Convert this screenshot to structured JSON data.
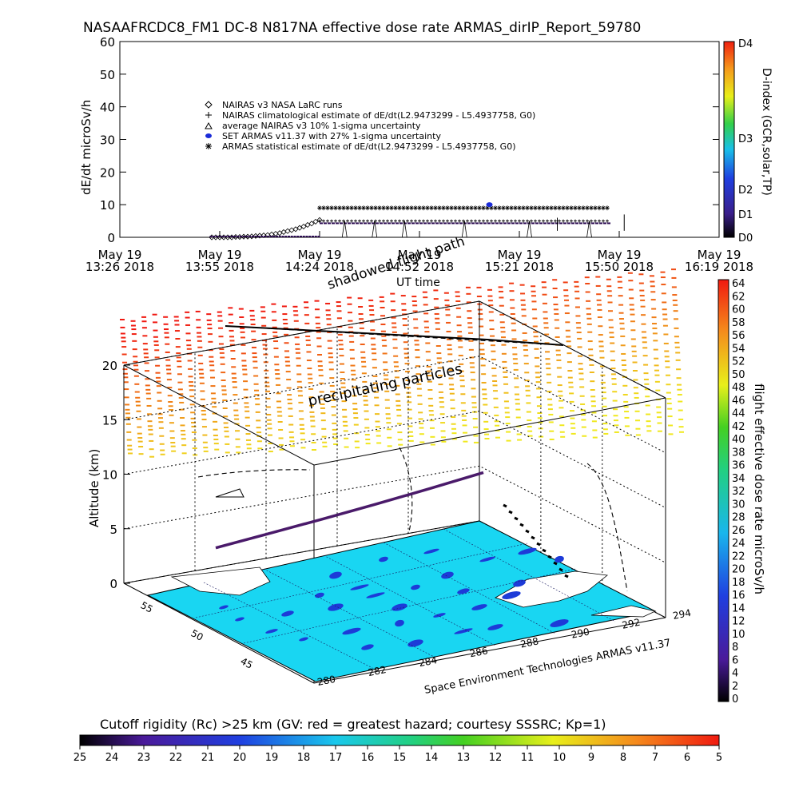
{
  "title": "NASAAFRCDC8_FM1 DC-8   N817NA effective dose rate ARMAS_dirIP_Report_59780",
  "chart_data": [
    {
      "type": "scatter",
      "title": "NASAAFRCDC8_FM1 DC-8   N817NA effective dose rate ARMAS_dirIP_Report_59780",
      "xlabel": "UT time",
      "ylabel": "dE/dt microSv/h",
      "ylim": [
        0,
        60
      ],
      "yticks": [
        "0",
        "10",
        "20",
        "30",
        "40",
        "50",
        "60"
      ],
      "xticks": [
        {
          "line1": "May 19",
          "line2": "13:26 2018"
        },
        {
          "line1": "May 19",
          "line2": "13:55 2018"
        },
        {
          "line1": "May 19",
          "line2": "14:24 2018"
        },
        {
          "line1": "May 19",
          "line2": "14:52 2018"
        },
        {
          "line1": "May 19",
          "line2": "15:21 2018"
        },
        {
          "line1": "May 19",
          "line2": "15:50 2018"
        },
        {
          "line1": "May 19",
          "line2": "16:19 2018"
        }
      ],
      "legend": [
        {
          "label": "NAIRAS v3 NASA LaRC runs",
          "symbol": "diamond",
          "color": "#000000"
        },
        {
          "label": "NAIRAS climatological estimate of dE/dt(L2.9473299 - L5.4937758, G0)",
          "symbol": "plus",
          "color": "#000000"
        },
        {
          "label": "average NAIRAS v3 10% 1-sigma uncertainty",
          "symbol": "triangle",
          "color": "#000000"
        },
        {
          "label": "SET ARMAS v11.37 with 27% 1-sigma uncertainty",
          "symbol": "dot",
          "color": "#1a2bd8"
        },
        {
          "label": "ARMAS statistical estimate of dE/dt(L2.9473299 - L5.4937758, G0)",
          "symbol": "asterisk",
          "color": "#000000"
        }
      ],
      "series": [
        {
          "name": "NAIRAS v3 NASA LaRC runs",
          "x": [
            0.92,
            0.96,
            1.0,
            1.04,
            1.08,
            1.12,
            1.16,
            1.2,
            1.24,
            1.28,
            1.32,
            1.36,
            1.4,
            1.44,
            1.48,
            1.52,
            1.56,
            1.6,
            1.64,
            1.68,
            1.72,
            1.76,
            1.8,
            1.84,
            1.88,
            1.92,
            1.96,
            2.0
          ],
          "y": [
            0,
            0,
            0,
            0,
            0,
            0,
            0.1,
            0.1,
            0.2,
            0.2,
            0.3,
            0.4,
            0.5,
            0.6,
            0.7,
            0.9,
            1.1,
            1.3,
            1.6,
            1.9,
            2.2,
            2.5,
            2.9,
            3.3,
            3.8,
            4.2,
            4.8,
            5.3
          ]
        },
        {
          "name": "NAIRAS climatological estimate of dE/dt(L2.9473299 - L5.4937758, G0)",
          "x": [
            2.0,
            2.6,
            3.2,
            3.8,
            4.4,
            4.9
          ],
          "y": [
            4.8,
            4.9,
            4.9,
            5.0,
            5.0,
            5.0
          ]
        },
        {
          "name": "ARMAS statistical estimate of dE/dt(L2.9473299 - L5.4937758, G0)",
          "x": [
            2.0,
            2.6,
            3.2,
            3.8,
            4.4,
            4.9
          ],
          "y": [
            8.6,
            8.8,
            8.9,
            9.0,
            9.0,
            9.0
          ]
        },
        {
          "name": "SET ARMAS v11.37 with 27% 1-sigma uncertainty",
          "x": [
            0.9,
            1.3,
            1.7,
            2.0,
            2.5,
            3.0,
            3.5,
            3.7,
            4.0,
            4.5,
            4.9
          ],
          "y": [
            0.1,
            0.1,
            0.2,
            5.0,
            5.0,
            5.0,
            5.0,
            10.0,
            5.0,
            5.0,
            5.0
          ]
        }
      ],
      "right_axis": {
        "label": "D-index (GCR,solar,TP)",
        "ticks": [
          "D0",
          "D1",
          "D2",
          "D3",
          "D4"
        ]
      }
    },
    {
      "type": "scatter",
      "title": "",
      "ylabel": "Altitude (km)",
      "zlim": [
        0,
        20
      ],
      "zticks": [
        "0",
        "5",
        "10",
        "15",
        "20"
      ],
      "lat_ticks": [
        "45",
        "50",
        "55"
      ],
      "lon_ticks": [
        "280",
        "282",
        "284",
        "286",
        "288",
        "290",
        "292",
        "294"
      ],
      "annotations": [
        "precipitating particles",
        "shadowed flight path"
      ],
      "colorbar": {
        "label": "flight effective dose rate microSv/h",
        "ticks": [
          "0",
          "2",
          "4",
          "6",
          "8",
          "10",
          "12",
          "14",
          "16",
          "18",
          "20",
          "22",
          "24",
          "26",
          "28",
          "30",
          "32",
          "34",
          "36",
          "38",
          "40",
          "42",
          "44",
          "46",
          "48",
          "50",
          "52",
          "54",
          "56",
          "58",
          "60",
          "62",
          "64"
        ]
      },
      "flight_path_altitude_km": [
        10.8,
        10.5,
        10.2,
        10.0,
        9.9,
        9.9
      ]
    }
  ],
  "credit": "Space Environment Technologies ARMAS v11.37",
  "bottom_colorbar": {
    "label": "Cutoff rigidity (Rc) >25 km (GV: red = greatest hazard; courtesy SSSRC; Kp=1)",
    "ticks": [
      "25",
      "24",
      "23",
      "22",
      "21",
      "20",
      "19",
      "18",
      "17",
      "16",
      "15",
      "14",
      "13",
      "12",
      "11",
      "10",
      "9",
      "8",
      "7",
      "6",
      "5"
    ]
  },
  "colors": {
    "land": "#19d6f2",
    "lake": "#1d3bd8",
    "path": "#4a1a6a",
    "accent_blue": "#1a2bd8"
  }
}
